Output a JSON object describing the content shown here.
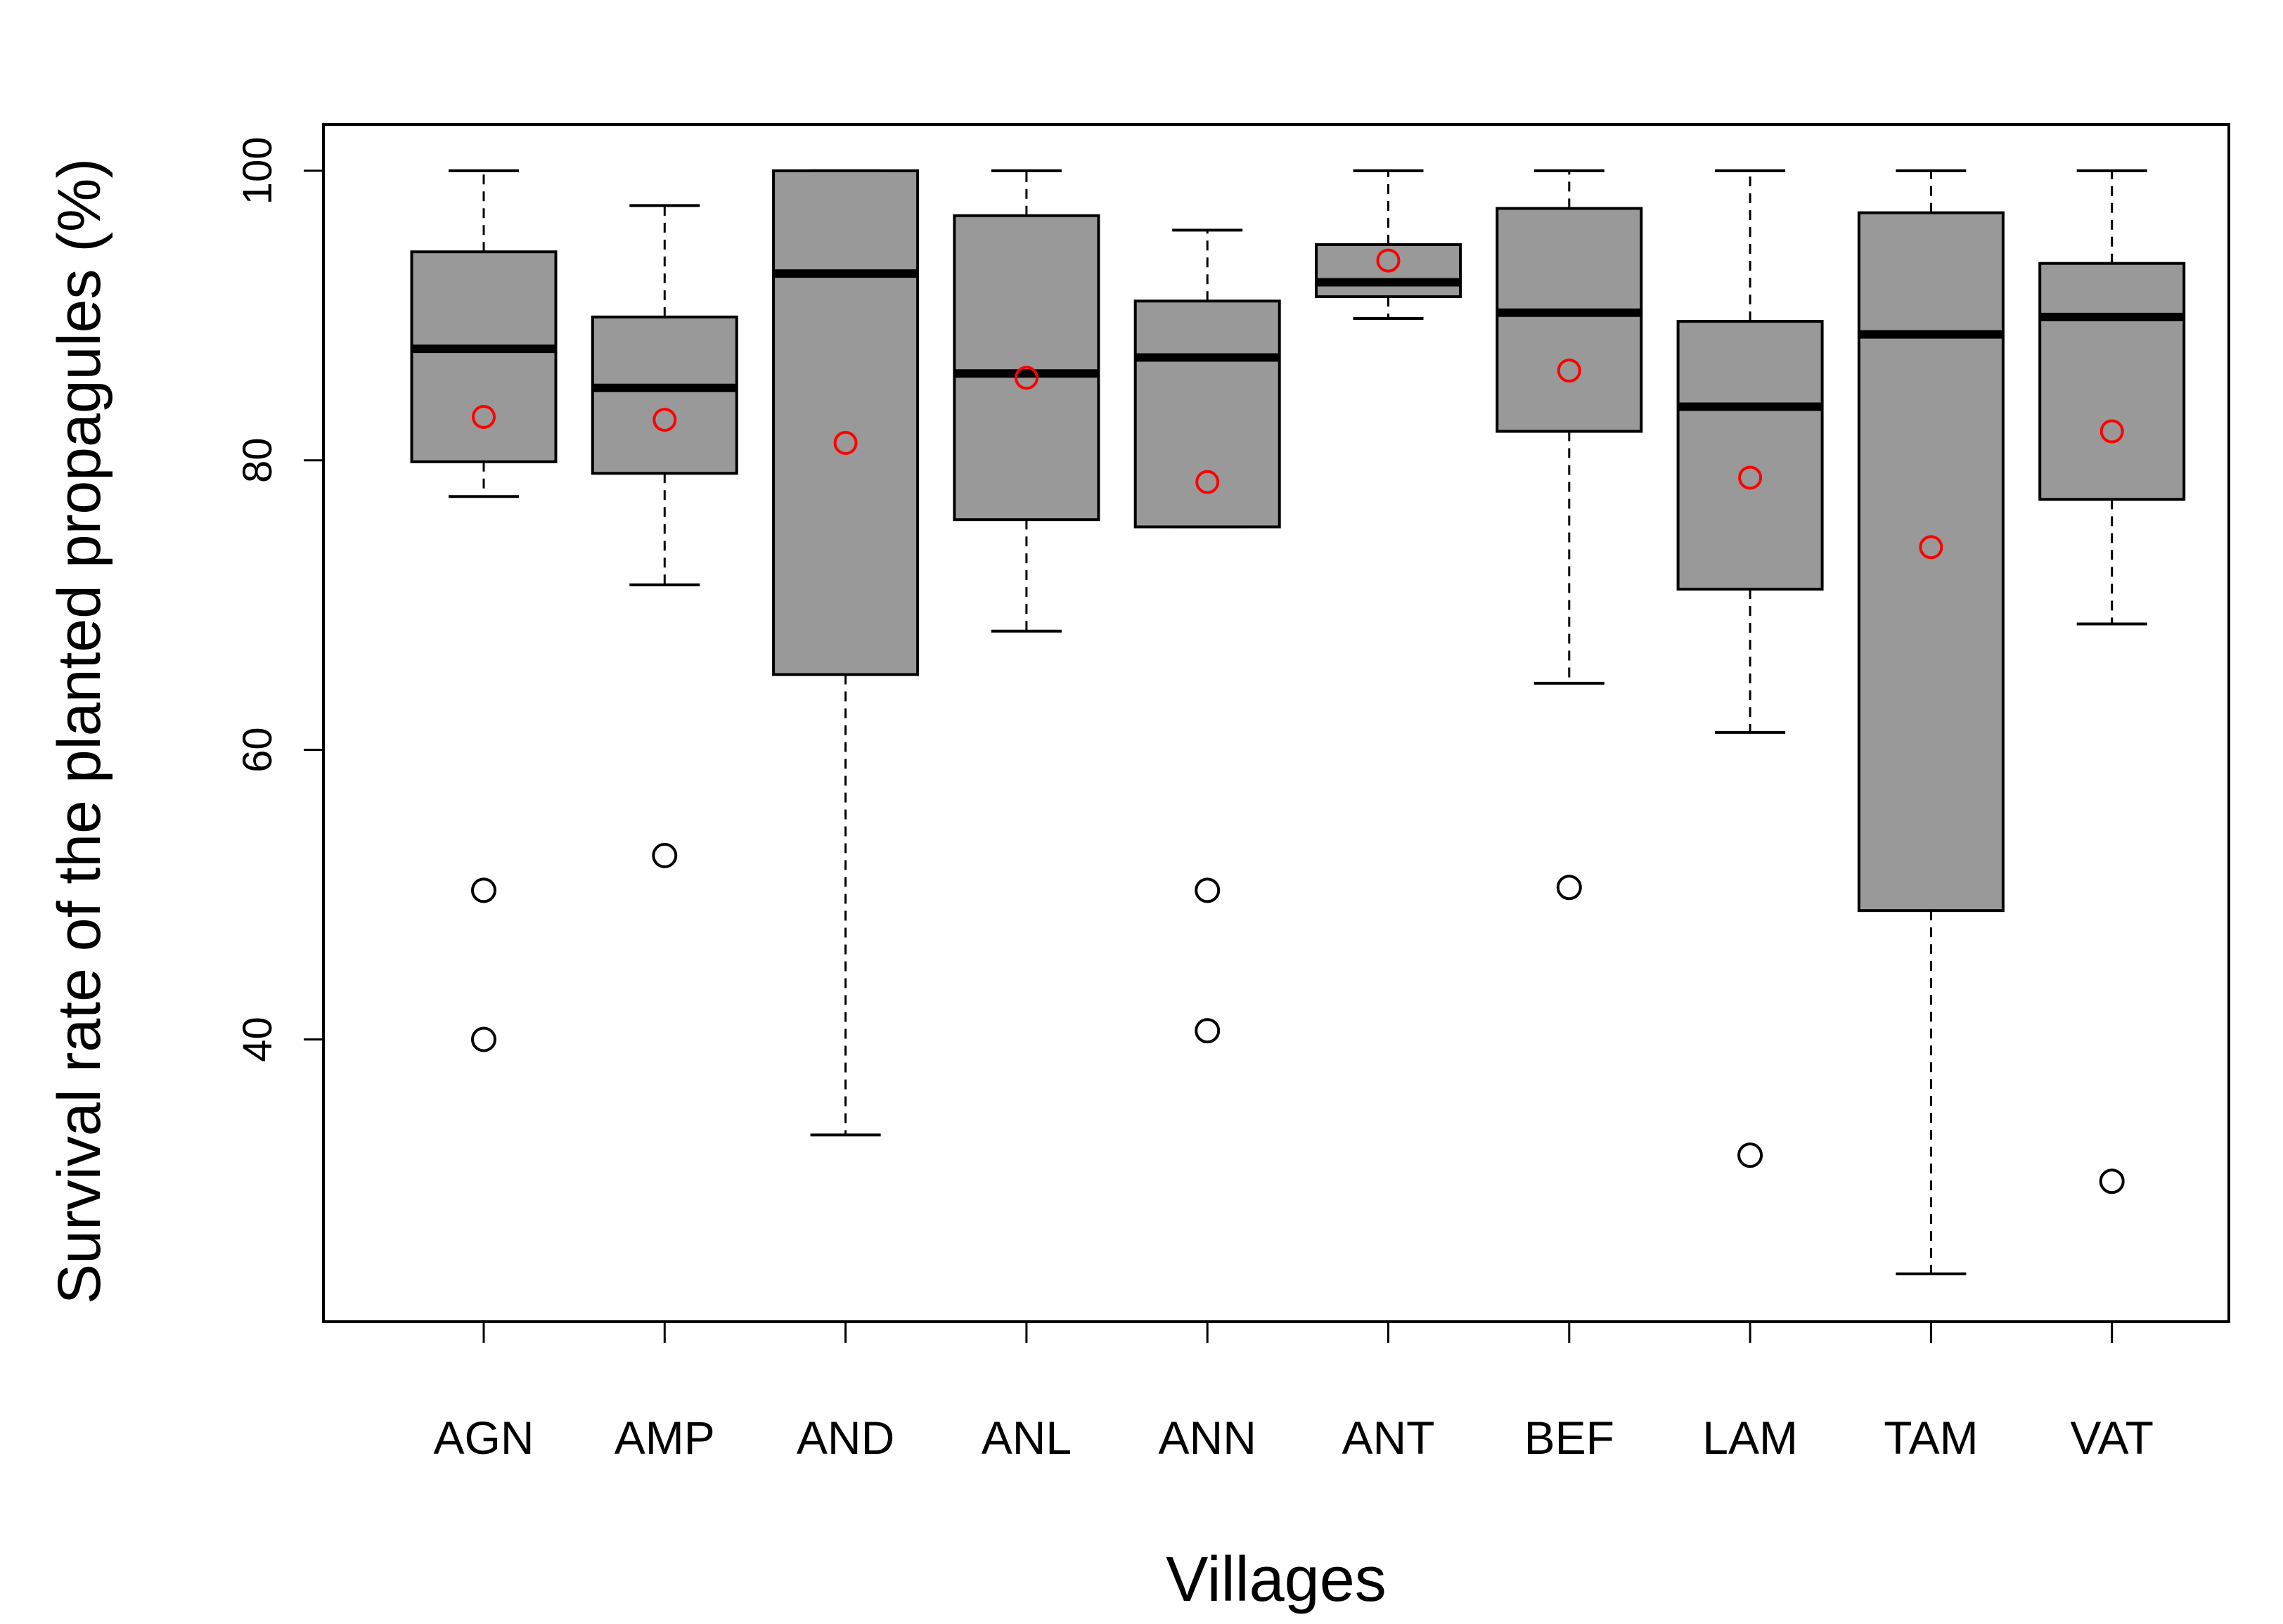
{
  "chart_data": {
    "type": "boxplot",
    "title": "",
    "xlabel": "Villages",
    "ylabel": "Survival rate of the planted propagules (%)",
    "ylim": [
      20.5,
      103.2
    ],
    "yticks": [
      40,
      60,
      80,
      100
    ],
    "categories": [
      "AGN",
      "AMP",
      "AND",
      "ANL",
      "ANN",
      "ANT",
      "BEF",
      "LAM",
      "TAM",
      "VAT"
    ],
    "boxes": [
      {
        "village": "AGN",
        "whisker_low": 77.5,
        "q1": 79.9,
        "median": 87.7,
        "q3": 94.4,
        "whisker_high": 100,
        "mean": 83.0,
        "outliers": [
          50.3,
          40.0
        ]
      },
      {
        "village": "AMP",
        "whisker_low": 71.4,
        "q1": 79.1,
        "median": 85.0,
        "q3": 89.9,
        "whisker_high": 97.6,
        "mean": 82.8,
        "outliers": [
          52.7
        ]
      },
      {
        "village": "AND",
        "whisker_low": 33.4,
        "q1": 65.2,
        "median": 92.9,
        "q3": 100,
        "whisker_high": 100,
        "mean": 81.2,
        "outliers": []
      },
      {
        "village": "ANL",
        "whisker_low": 68.2,
        "q1": 75.9,
        "median": 86.0,
        "q3": 96.9,
        "whisker_high": 100,
        "mean": 85.7,
        "outliers": []
      },
      {
        "village": "ANN",
        "whisker_low": 75.4,
        "q1": 75.4,
        "median": 87.1,
        "q3": 91.0,
        "whisker_high": 95.9,
        "mean": 78.5,
        "outliers": [
          50.3,
          40.6
        ]
      },
      {
        "village": "ANT",
        "whisker_low": 89.8,
        "q1": 91.3,
        "median": 92.3,
        "q3": 94.9,
        "whisker_high": 100,
        "mean": 93.8,
        "outliers": []
      },
      {
        "village": "BEF",
        "whisker_low": 64.6,
        "q1": 82.0,
        "median": 90.2,
        "q3": 97.4,
        "whisker_high": 100,
        "mean": 86.2,
        "outliers": [
          50.5
        ]
      },
      {
        "village": "LAM",
        "whisker_low": 61.2,
        "q1": 71.1,
        "median": 83.7,
        "q3": 89.6,
        "whisker_high": 100,
        "mean": 78.8,
        "outliers": [
          32.0
        ]
      },
      {
        "village": "TAM",
        "whisker_low": 23.8,
        "q1": 48.9,
        "median": 88.7,
        "q3": 97.1,
        "whisker_high": 100,
        "mean": 74.0,
        "outliers": []
      },
      {
        "village": "VAT",
        "whisker_low": 68.7,
        "q1": 77.3,
        "median": 89.9,
        "q3": 93.6,
        "whisker_high": 100,
        "mean": 82.0,
        "outliers": [
          30.2
        ]
      }
    ],
    "colors": {
      "box_fill": "#999999",
      "mean_marker": "#ff0000",
      "outlier_marker": "#000000",
      "line": "#000000"
    },
    "grid": false,
    "legend": "none"
  }
}
